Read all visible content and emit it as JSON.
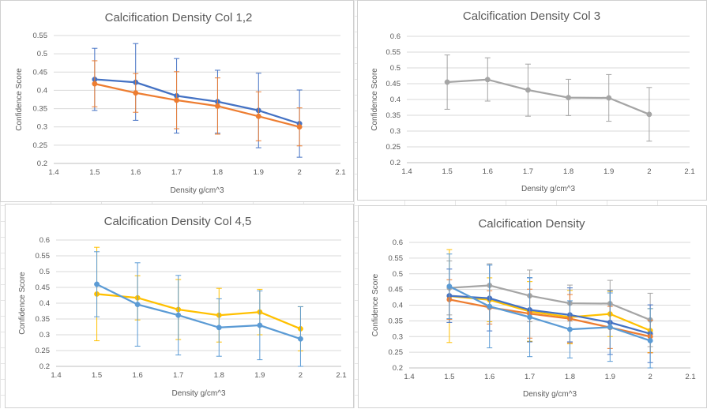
{
  "colors": {
    "blue": "#4472c4",
    "orange": "#ed7d31",
    "gray": "#a5a5a5",
    "yellow": "#ffc000",
    "lightblue": "#5b9bd5"
  },
  "chart_data": [
    {
      "type": "line",
      "title": "Calcification Density Col 1,2",
      "xlabel": "Density g/cm^3",
      "ylabel": "Confidence Score",
      "xlim": [
        1.4,
        2.1
      ],
      "ylim": [
        0.2,
        0.55
      ],
      "xticks": [
        "1.4",
        "1.5",
        "1.6",
        "1.7",
        "1.8",
        "1.9",
        "2",
        "2.1"
      ],
      "yticks": [
        "0.2",
        "0.25",
        "0.3",
        "0.35",
        "0.4",
        "0.45",
        "0.5",
        "0.55"
      ],
      "x": [
        1.5,
        1.6,
        1.7,
        1.8,
        1.9,
        2.0
      ],
      "grid": true,
      "series": [
        {
          "color": "#4472c4",
          "values": [
            0.43,
            0.422,
            0.385,
            0.369,
            0.345,
            0.309
          ],
          "err_low": [
            0.345,
            0.318,
            0.283,
            0.283,
            0.243,
            0.217
          ],
          "err_high": [
            0.515,
            0.528,
            0.487,
            0.455,
            0.447,
            0.401
          ]
        },
        {
          "color": "#ed7d31",
          "values": [
            0.418,
            0.393,
            0.373,
            0.357,
            0.329,
            0.3
          ],
          "err_low": [
            0.355,
            0.34,
            0.295,
            0.28,
            0.262,
            0.248
          ],
          "err_high": [
            0.481,
            0.446,
            0.451,
            0.434,
            0.396,
            0.352
          ]
        }
      ]
    },
    {
      "type": "line",
      "title": "Calcification Density Col 3",
      "xlabel": "Density g/cm^3",
      "ylabel": "Confidence Score",
      "xlim": [
        1.4,
        2.1
      ],
      "ylim": [
        0.2,
        0.6
      ],
      "xticks": [
        "1.4",
        "1.5",
        "1.6",
        "1.7",
        "1.8",
        "1.9",
        "2",
        "2.1"
      ],
      "yticks": [
        "0.2",
        "0.25",
        "0.3",
        "0.35",
        "0.4",
        "0.45",
        "0.5",
        "0.55",
        "0.6"
      ],
      "x": [
        1.5,
        1.6,
        1.7,
        1.8,
        1.9,
        2.0
      ],
      "grid": true,
      "series": [
        {
          "color": "#a5a5a5",
          "values": [
            0.455,
            0.463,
            0.43,
            0.406,
            0.405,
            0.353
          ],
          "err_low": [
            0.369,
            0.395,
            0.347,
            0.349,
            0.331,
            0.268
          ],
          "err_high": [
            0.541,
            0.532,
            0.512,
            0.464,
            0.479,
            0.438
          ]
        }
      ]
    },
    {
      "type": "line",
      "title": "Calcification Density Col 4,5",
      "xlabel": "Density g/cm^3",
      "ylabel": "Confidence Score",
      "xlim": [
        1.4,
        2.1
      ],
      "ylim": [
        0.2,
        0.6
      ],
      "xticks": [
        "1.4",
        "1.5",
        "1.6",
        "1.7",
        "1.8",
        "1.9",
        "2",
        "2.1"
      ],
      "yticks": [
        "0.2",
        "0.25",
        "0.3",
        "0.35",
        "0.4",
        "0.45",
        "0.5",
        "0.55",
        "0.6"
      ],
      "x": [
        1.5,
        1.6,
        1.7,
        1.8,
        1.9,
        2.0
      ],
      "grid": true,
      "series": [
        {
          "color": "#ffc000",
          "values": [
            0.429,
            0.417,
            0.38,
            0.362,
            0.372,
            0.319
          ],
          "err_low": [
            0.281,
            0.347,
            0.285,
            0.277,
            0.3,
            0.249
          ],
          "err_high": [
            0.577,
            0.487,
            0.475,
            0.447,
            0.444,
            0.389
          ]
        },
        {
          "color": "#5b9bd5",
          "values": [
            0.46,
            0.396,
            0.362,
            0.323,
            0.33,
            0.287
          ],
          "err_low": [
            0.357,
            0.264,
            0.236,
            0.232,
            0.221,
            0.185
          ],
          "err_high": [
            0.563,
            0.528,
            0.488,
            0.414,
            0.439,
            0.389
          ]
        }
      ]
    },
    {
      "type": "line",
      "title": "Calcification Density",
      "xlabel": "Density g/cm^3",
      "ylabel": "Confidence Score",
      "xlim": [
        1.4,
        2.1
      ],
      "ylim": [
        0.2,
        0.6
      ],
      "xticks": [
        "1.4",
        "1.5",
        "1.6",
        "1.7",
        "1.8",
        "1.9",
        "2",
        "2.1"
      ],
      "yticks": [
        "0.2",
        "0.25",
        "0.3",
        "0.35",
        "0.4",
        "0.45",
        "0.5",
        "0.55",
        "0.6"
      ],
      "x": [
        1.5,
        1.6,
        1.7,
        1.8,
        1.9,
        2.0
      ],
      "grid": true,
      "series": [
        {
          "color": "#a5a5a5",
          "values": [
            0.455,
            0.463,
            0.43,
            0.406,
            0.405,
            0.353
          ],
          "err_low": [
            0.369,
            0.395,
            0.347,
            0.349,
            0.331,
            0.268
          ],
          "err_high": [
            0.541,
            0.532,
            0.512,
            0.464,
            0.479,
            0.438
          ]
        },
        {
          "color": "#ffc000",
          "values": [
            0.429,
            0.417,
            0.38,
            0.362,
            0.372,
            0.319
          ],
          "err_low": [
            0.281,
            0.347,
            0.285,
            0.277,
            0.3,
            0.249
          ],
          "err_high": [
            0.577,
            0.487,
            0.475,
            0.447,
            0.444,
            0.389
          ]
        },
        {
          "color": "#4472c4",
          "values": [
            0.43,
            0.422,
            0.385,
            0.369,
            0.345,
            0.309
          ],
          "err_low": [
            0.345,
            0.318,
            0.283,
            0.283,
            0.243,
            0.217
          ],
          "err_high": [
            0.515,
            0.528,
            0.487,
            0.455,
            0.447,
            0.401
          ]
        },
        {
          "color": "#ed7d31",
          "values": [
            0.418,
            0.393,
            0.373,
            0.357,
            0.329,
            0.3
          ],
          "err_low": [
            0.355,
            0.34,
            0.295,
            0.28,
            0.262,
            0.248
          ],
          "err_high": [
            0.481,
            0.446,
            0.451,
            0.434,
            0.396,
            0.352
          ]
        },
        {
          "color": "#5b9bd5",
          "values": [
            0.46,
            0.396,
            0.362,
            0.323,
            0.33,
            0.287
          ],
          "err_low": [
            0.357,
            0.264,
            0.236,
            0.232,
            0.221,
            0.185
          ],
          "err_high": [
            0.563,
            0.528,
            0.488,
            0.414,
            0.439,
            0.389
          ]
        }
      ]
    }
  ]
}
